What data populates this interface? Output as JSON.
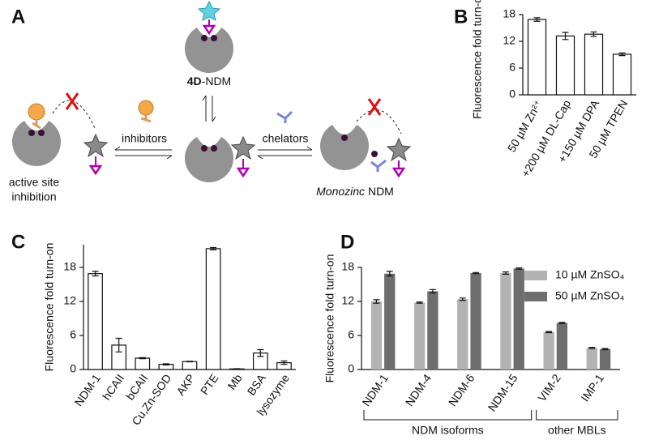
{
  "diagram": {
    "label": "A",
    "product": {
      "bold": "4D",
      "rest": "-NDM"
    },
    "inhibitors": "inhibitors",
    "chelators": "chelators",
    "active_site": [
      "active site",
      "inhibition"
    ],
    "monozinc": {
      "italic": "Monozinc",
      "rest": " NDM"
    }
  },
  "chart_data": [
    {
      "type": "bar",
      "panel": "B",
      "ylabel": "Fluorescence fold turn-on",
      "categories": [
        "50 µM Zn²⁺",
        "+200 µM DL-Cap",
        "+150 µM DPA",
        "50 µM TPEN"
      ],
      "values": [
        16.9,
        13.2,
        13.6,
        9.1
      ],
      "errors": [
        0.4,
        0.8,
        0.5,
        0.3
      ],
      "color": "#ffffff",
      "ylim": [
        0,
        18
      ],
      "yticks": [
        0,
        6,
        12,
        18
      ]
    },
    {
      "type": "bar",
      "panel": "C",
      "ylabel": "Fluorescence fold turn-on",
      "categories": [
        "NDM-1",
        "hCAII",
        "bCAII",
        "Cu,Zn-SOD",
        "AKP",
        "PTE",
        "Mb",
        "BSA",
        "lysozyme"
      ],
      "values": [
        16.9,
        4.3,
        2.0,
        0.9,
        1.4,
        21.3,
        0.1,
        2.9,
        1.2
      ],
      "errors": [
        0.4,
        1.2,
        0.1,
        0.1,
        0.05,
        0.2,
        0.05,
        0.6,
        0.3
      ],
      "color": "#ffffff",
      "ylim": [
        0,
        22
      ],
      "yticks": [
        0,
        6,
        12,
        18
      ]
    },
    {
      "type": "bar",
      "panel": "D",
      "ylabel": "Fluorescence fold turn-on",
      "categories": [
        "NDM-1",
        "NDM-4",
        "NDM-6",
        "NDM-15",
        "VIM-2",
        "IMP-1"
      ],
      "series": [
        {
          "name": "10 µM ZnSO₄",
          "color": "#b3b3b3",
          "values": [
            12.0,
            11.8,
            12.4,
            17.0,
            6.6,
            3.8
          ],
          "errors": [
            0.3,
            0.1,
            0.2,
            0.2,
            0.1,
            0.1
          ]
        },
        {
          "name": "50 µM ZnSO₄",
          "color": "#6e6e6e",
          "values": [
            16.9,
            13.8,
            17.0,
            17.8,
            8.2,
            3.6
          ],
          "errors": [
            0.4,
            0.3,
            0.1,
            0.1,
            0.1,
            0.1
          ]
        }
      ],
      "groups": [
        "NDM isoforms",
        "other MBLs"
      ],
      "legend": "upper right",
      "ylim": [
        0,
        18
      ],
      "yticks": [
        0,
        6,
        12,
        18
      ]
    }
  ]
}
